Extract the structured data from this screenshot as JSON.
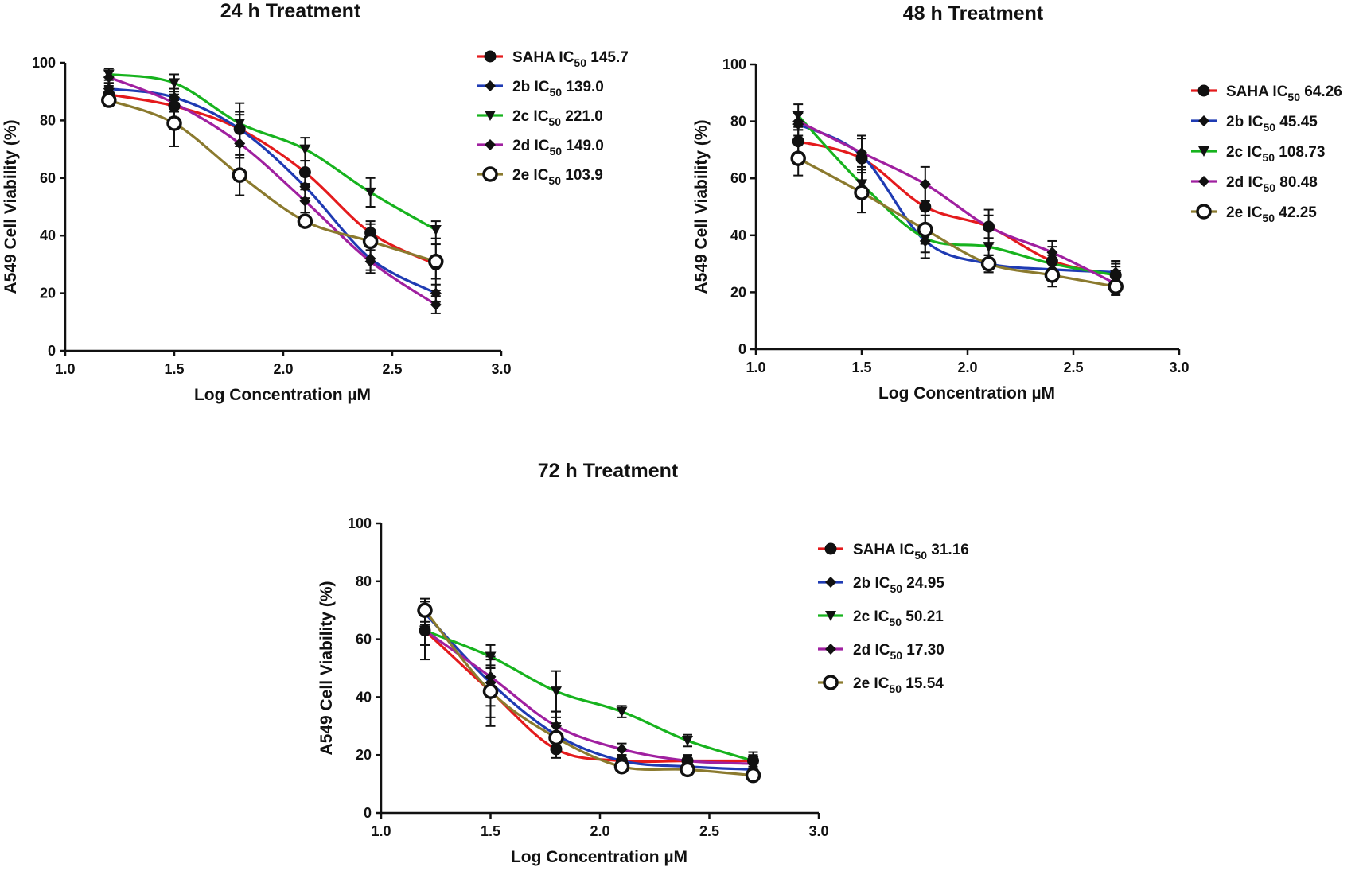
{
  "chart_data": [
    {
      "type": "line",
      "title": "24 h Treatment",
      "xlabel": "Log Concentration µM",
      "ylabel": "A549 Cell Viability (%)",
      "xlim": [
        1.0,
        3.0
      ],
      "ylim": [
        0,
        100
      ],
      "xticks": [
        "1.0",
        "1.5",
        "2.0",
        "2.5",
        "3.0"
      ],
      "yticks": [
        "0",
        "20",
        "40",
        "60",
        "80",
        "100"
      ],
      "x": [
        1.2,
        1.5,
        1.8,
        2.1,
        2.4,
        2.7
      ],
      "legend_position": "right",
      "series": [
        {
          "name": "SAHA",
          "ic50": "145.7",
          "color": "#e41a1c",
          "marker": "circle",
          "values": [
            89,
            85,
            77,
            62,
            41,
            30
          ],
          "errors": [
            3,
            4,
            6,
            4,
            4,
            9
          ]
        },
        {
          "name": "2b",
          "ic50": "139.0",
          "color": "#1f3bb3",
          "marker": "diamond",
          "values": [
            91,
            88,
            77,
            57,
            32,
            20
          ],
          "errors": [
            2,
            3,
            5,
            4,
            4,
            3
          ]
        },
        {
          "name": "2c",
          "ic50": "221.0",
          "color": "#17b31e",
          "marker": "triangle-down",
          "values": [
            96,
            93,
            79,
            70,
            55,
            42
          ],
          "errors": [
            2,
            3,
            7,
            4,
            5,
            3
          ]
        },
        {
          "name": "2d",
          "ic50": "149.0",
          "color": "#a020a0",
          "marker": "diamond",
          "values": [
            95,
            86,
            72,
            52,
            31,
            16
          ],
          "errors": [
            2,
            3,
            5,
            4,
            4,
            3
          ]
        },
        {
          "name": "2e",
          "ic50": "103.9",
          "color": "#8b7a2e",
          "marker": "open-circle",
          "values": [
            87,
            79,
            61,
            45,
            38,
            31
          ],
          "errors": [
            2,
            8,
            7,
            2,
            6,
            6
          ]
        }
      ]
    },
    {
      "type": "line",
      "title": "48 h Treatment",
      "xlabel": "Log Concentration µM",
      "ylabel": "A549 Cell Viability (%)",
      "xlim": [
        1.0,
        3.0
      ],
      "ylim": [
        0,
        100
      ],
      "xticks": [
        "1.0",
        "1.5",
        "2.0",
        "2.5",
        "3.0"
      ],
      "yticks": [
        "0",
        "20",
        "40",
        "60",
        "80",
        "100"
      ],
      "x": [
        1.2,
        1.5,
        1.8,
        2.1,
        2.4,
        2.7
      ],
      "legend_position": "right",
      "series": [
        {
          "name": "SAHA",
          "ic50": "64.26",
          "color": "#e41a1c",
          "marker": "circle",
          "values": [
            73,
            67,
            50,
            43,
            31,
            26
          ],
          "errors": [
            4,
            8,
            8,
            6,
            5,
            5
          ]
        },
        {
          "name": "2b",
          "ic50": "45.45",
          "color": "#1f3bb3",
          "marker": "diamond",
          "values": [
            79,
            68,
            38,
            30,
            28,
            27
          ],
          "errors": [
            4,
            6,
            6,
            3,
            3,
            3
          ]
        },
        {
          "name": "2c",
          "ic50": "108.73",
          "color": "#17b31e",
          "marker": "triangle-down",
          "values": [
            82,
            58,
            39,
            36,
            30,
            26
          ],
          "errors": [
            4,
            5,
            5,
            3,
            3,
            3
          ]
        },
        {
          "name": "2d",
          "ic50": "80.48",
          "color": "#a020a0",
          "marker": "diamond",
          "values": [
            80,
            69,
            58,
            43,
            34,
            23
          ],
          "errors": [
            3,
            5,
            6,
            4,
            4,
            3
          ]
        },
        {
          "name": "2e",
          "ic50": "42.25",
          "color": "#8b7a2e",
          "marker": "open-circle",
          "values": [
            67,
            55,
            42,
            30,
            26,
            22
          ],
          "errors": [
            6,
            7,
            5,
            3,
            4,
            3
          ]
        }
      ]
    },
    {
      "type": "line",
      "title": "72 h Treatment",
      "xlabel": "Log Concentration µM",
      "ylabel": "A549 Cell Viability (%)",
      "xlim": [
        1.0,
        3.0
      ],
      "ylim": [
        0,
        100
      ],
      "xticks": [
        "1.0",
        "1.5",
        "2.0",
        "2.5",
        "3.0"
      ],
      "yticks": [
        "0",
        "20",
        "40",
        "60",
        "80",
        "100"
      ],
      "x": [
        1.2,
        1.5,
        1.8,
        2.1,
        2.4,
        2.7
      ],
      "legend_position": "right",
      "series": [
        {
          "name": "SAHA",
          "ic50": "31.16",
          "color": "#e41a1c",
          "marker": "circle",
          "values": [
            63,
            42,
            22,
            18,
            18,
            18
          ],
          "errors": [
            10,
            12,
            3,
            2,
            2,
            2
          ]
        },
        {
          "name": "2b",
          "ic50": "24.95",
          "color": "#1f3bb3",
          "marker": "diamond",
          "values": [
            69,
            45,
            27,
            18,
            16,
            15
          ],
          "errors": [
            4,
            8,
            6,
            2,
            2,
            2
          ]
        },
        {
          "name": "2c",
          "ic50": "50.21",
          "color": "#17b31e",
          "marker": "triangle-down",
          "values": [
            63,
            54,
            42,
            35,
            25,
            18
          ],
          "errors": [
            5,
            4,
            7,
            2,
            2,
            3
          ]
        },
        {
          "name": "2d",
          "ic50": "17.30",
          "color": "#a020a0",
          "marker": "diamond",
          "values": [
            63,
            47,
            30,
            22,
            18,
            17
          ],
          "errors": [
            5,
            6,
            5,
            2,
            2,
            2
          ]
        },
        {
          "name": "2e",
          "ic50": "15.54",
          "color": "#8b7a2e",
          "marker": "open-circle",
          "values": [
            70,
            42,
            26,
            16,
            15,
            13
          ],
          "errors": [
            4,
            9,
            5,
            2,
            2,
            2
          ]
        }
      ]
    }
  ]
}
